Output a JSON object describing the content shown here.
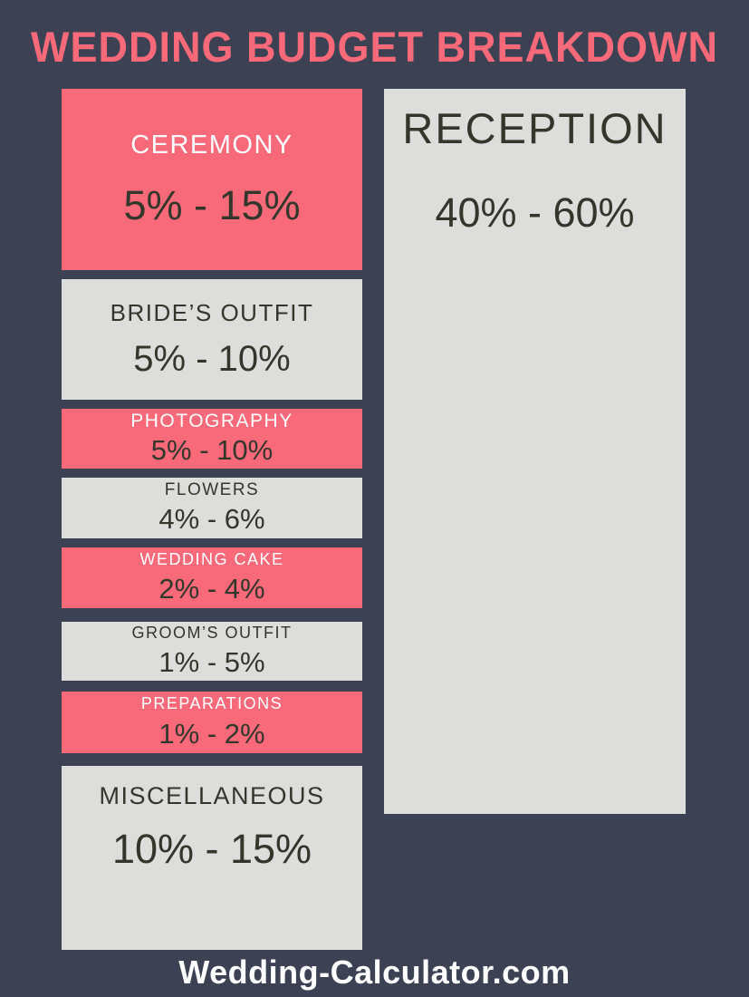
{
  "title": "WEDDING BUDGET BREAKDOWN",
  "footer": {
    "site": "Wedding-Calculator.com"
  },
  "colors": {
    "background": "#3C4253",
    "accent_pink": "#F8697A",
    "box_gray": "#DDDDDB",
    "dark_text": "#33362B",
    "white_text": "#FFFFFF"
  },
  "left_column": {
    "items": [
      {
        "label": "CEREMONY",
        "range": "5% - 15%",
        "style": "pink"
      },
      {
        "label": "BRIDE’S OUTFIT",
        "range": "5% - 10%",
        "style": "gray"
      },
      {
        "label": "PHOTOGRAPHY",
        "range": "5% - 10%",
        "style": "pink"
      },
      {
        "label": "FLOWERS",
        "range": "4% - 6%",
        "style": "gray"
      },
      {
        "label": "WEDDING CAKE",
        "range": "2% - 4%",
        "style": "pink"
      },
      {
        "label": "GROOM’S OUTFIT",
        "range": "1% - 5%",
        "style": "gray"
      },
      {
        "label": "PREPARATIONS",
        "range": "1% - 2%",
        "style": "pink"
      },
      {
        "label": "MISCELLANEOUS",
        "range": "10% - 15%",
        "style": "gray"
      }
    ]
  },
  "right_column": {
    "label": "RECEPTION",
    "range": "40% - 60%"
  },
  "chart_data": {
    "type": "table",
    "title": "WEDDING BUDGET BREAKDOWN",
    "categories": [
      "CEREMONY",
      "BRIDE’S OUTFIT",
      "PHOTOGRAPHY",
      "FLOWERS",
      "WEDDING CAKE",
      "GROOM’S OUTFIT",
      "PREPARATIONS",
      "MISCELLANEOUS",
      "RECEPTION"
    ],
    "series": [
      {
        "name": "min_percent",
        "values": [
          5,
          5,
          5,
          4,
          2,
          1,
          1,
          10,
          40
        ]
      },
      {
        "name": "max_percent",
        "values": [
          15,
          10,
          10,
          6,
          4,
          5,
          2,
          15,
          60
        ]
      }
    ],
    "value_labels": [
      "5% - 15%",
      "5% - 10%",
      "5% - 10%",
      "4% - 6%",
      "2% - 4%",
      "1% - 5%",
      "1% - 2%",
      "10% - 15%",
      "40% - 60%"
    ],
    "unit": "percent of total wedding budget"
  }
}
